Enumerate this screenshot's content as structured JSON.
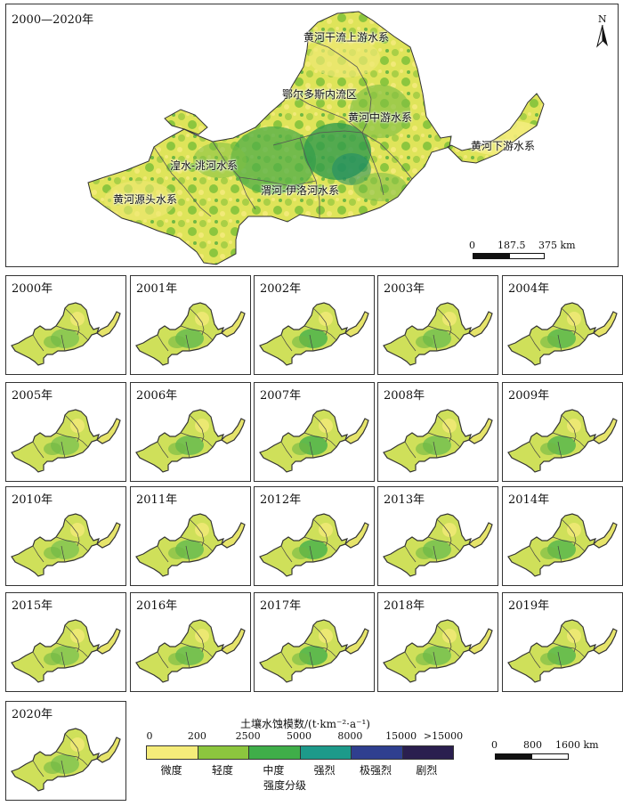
{
  "main_map": {
    "title": "2000—2020年",
    "north": "N",
    "regions": [
      {
        "name": "黄河干流上游水系"
      },
      {
        "name": "鄂尔多斯内流区"
      },
      {
        "name": "黄河中游水系"
      },
      {
        "name": "黄河下游水系"
      },
      {
        "name": "湟水-洮河水系"
      },
      {
        "name": "渭河-伊洛河水系"
      },
      {
        "name": "黄河源头水系"
      }
    ],
    "scale_ticks": [
      "0",
      "187.5",
      "375 km"
    ]
  },
  "years": [
    "2000年",
    "2001年",
    "2002年",
    "2003年",
    "2004年",
    "2005年",
    "2006年",
    "2007年",
    "2008年",
    "2009年",
    "2010年",
    "2011年",
    "2012年",
    "2013年",
    "2014年",
    "2015年",
    "2016年",
    "2017年",
    "2018年",
    "2019年",
    "2020年"
  ],
  "legend": {
    "title": "土壤水蚀模数/(t·km⁻²·a⁻¹)",
    "ticks": [
      "0",
      "200",
      "2500",
      "5000",
      "8000",
      "15000",
      ">15000"
    ],
    "classes": [
      {
        "label": "微度",
        "color": "#f5ec7a"
      },
      {
        "label": "轻度",
        "color": "#8cc63e"
      },
      {
        "label": "中度",
        "color": "#3fae49"
      },
      {
        "label": "强烈",
        "color": "#1d9a8a"
      },
      {
        "label": "极强烈",
        "color": "#2f3f8f"
      },
      {
        "label": "剧烈",
        "color": "#2a1f4f"
      }
    ],
    "xlabel": "强度分级"
  },
  "small_scale_ticks": [
    "0",
    "800",
    "1600 km"
  ]
}
